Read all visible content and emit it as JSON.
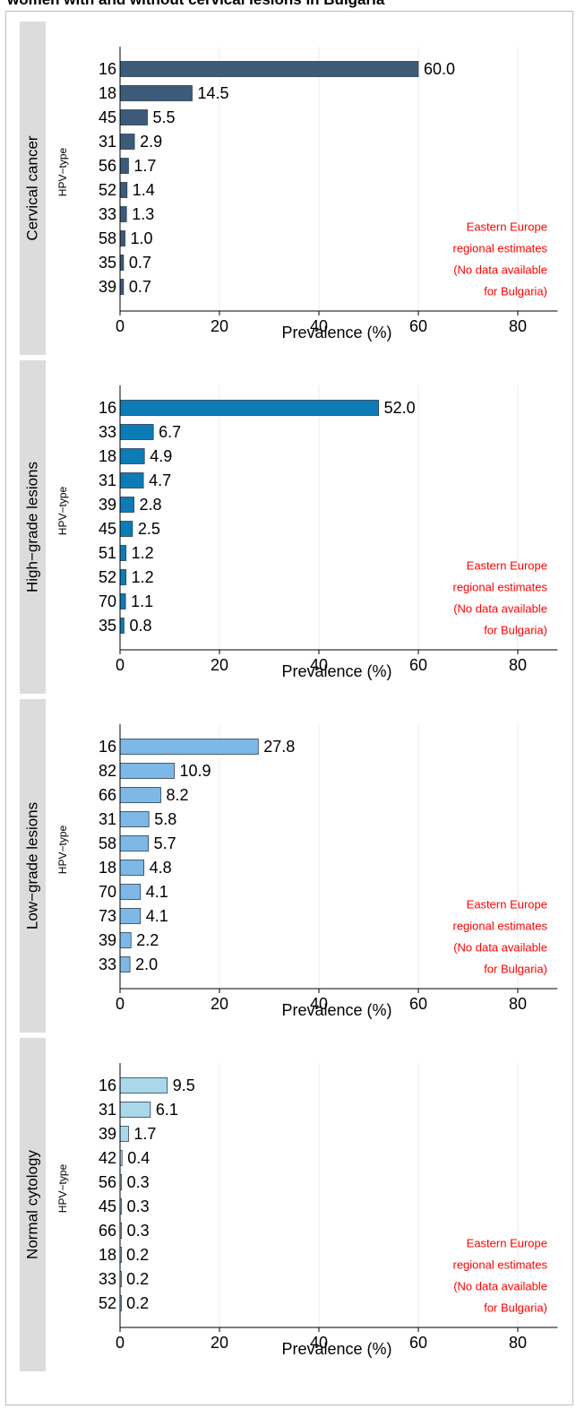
{
  "page": {
    "heading": "women with and without cervical lesions in Bulgaria"
  },
  "chart_data": [
    {
      "type": "bar",
      "orientation": "horizontal",
      "panel_label": "Cervical cancer",
      "ylabel": "HPV−type",
      "xlabel": "Prevalence (%)",
      "xlim": [
        0,
        88
      ],
      "xticks": [
        0,
        20,
        40,
        60,
        80
      ],
      "grid": true,
      "color": "#3d5a78",
      "categories": [
        "16",
        "18",
        "45",
        "31",
        "56",
        "52",
        "33",
        "58",
        "35",
        "39"
      ],
      "values": [
        60.0,
        14.5,
        5.5,
        2.9,
        1.7,
        1.4,
        1.3,
        1.0,
        0.7,
        0.7
      ],
      "value_labels": [
        "60.0",
        "14.5",
        "5.5",
        "2.9",
        "1.7",
        "1.4",
        "1.3",
        "1.0",
        "0.7",
        "0.7"
      ],
      "annotation": [
        "Eastern Europe",
        "regional estimates",
        "(No data available",
        "for Bulgaria)"
      ],
      "annotation_color": "#ff0000"
    },
    {
      "type": "bar",
      "orientation": "horizontal",
      "panel_label": "High−grade lesions",
      "ylabel": "HPV−type",
      "xlabel": "Prevalence (%)",
      "xlim": [
        0,
        88
      ],
      "xticks": [
        0,
        20,
        40,
        60,
        80
      ],
      "grid": true,
      "color": "#0d7bb5",
      "categories": [
        "16",
        "33",
        "18",
        "31",
        "39",
        "45",
        "51",
        "52",
        "70",
        "35"
      ],
      "values": [
        52.0,
        6.7,
        4.9,
        4.7,
        2.8,
        2.5,
        1.2,
        1.2,
        1.1,
        0.8
      ],
      "value_labels": [
        "52.0",
        "6.7",
        "4.9",
        "4.7",
        "2.8",
        "2.5",
        "1.2",
        "1.2",
        "1.1",
        "0.8"
      ],
      "annotation": [
        "Eastern Europe",
        "regional estimates",
        "(No data available",
        "for Bulgaria)"
      ],
      "annotation_color": "#ff0000"
    },
    {
      "type": "bar",
      "orientation": "horizontal",
      "panel_label": "Low−grade lesions",
      "ylabel": "HPV−type",
      "xlabel": "Prevalence (%)",
      "xlim": [
        0,
        88
      ],
      "xticks": [
        0,
        20,
        40,
        60,
        80
      ],
      "grid": true,
      "color": "#7db8e6",
      "categories": [
        "16",
        "82",
        "66",
        "31",
        "58",
        "18",
        "70",
        "73",
        "39",
        "33"
      ],
      "values": [
        27.8,
        10.9,
        8.2,
        5.8,
        5.7,
        4.8,
        4.1,
        4.1,
        2.2,
        2.0
      ],
      "value_labels": [
        "27.8",
        "10.9",
        "8.2",
        "5.8",
        "5.7",
        "4.8",
        "4.1",
        "4.1",
        "2.2",
        "2.0"
      ],
      "annotation": [
        "Eastern Europe",
        "regional estimates",
        "(No data available",
        "for Bulgaria)"
      ],
      "annotation_color": "#ff0000"
    },
    {
      "type": "bar",
      "orientation": "horizontal",
      "panel_label": "Normal cytology",
      "ylabel": "HPV−type",
      "xlabel": "Prevalence (%)",
      "xlim": [
        0,
        88
      ],
      "xticks": [
        0,
        20,
        40,
        60,
        80
      ],
      "grid": true,
      "color": "#a9d8e8",
      "categories": [
        "16",
        "31",
        "39",
        "42",
        "56",
        "45",
        "66",
        "18",
        "33",
        "52"
      ],
      "values": [
        9.5,
        6.1,
        1.7,
        0.4,
        0.3,
        0.3,
        0.3,
        0.2,
        0.2,
        0.2
      ],
      "value_labels": [
        "9.5",
        "6.1",
        "1.7",
        "0.4",
        "0.3",
        "0.3",
        "0.3",
        "0.2",
        "0.2",
        "0.2"
      ],
      "annotation": [
        "Eastern Europe",
        "regional estimates",
        "(No data available",
        "for Bulgaria)"
      ],
      "annotation_color": "#ff0000"
    }
  ]
}
